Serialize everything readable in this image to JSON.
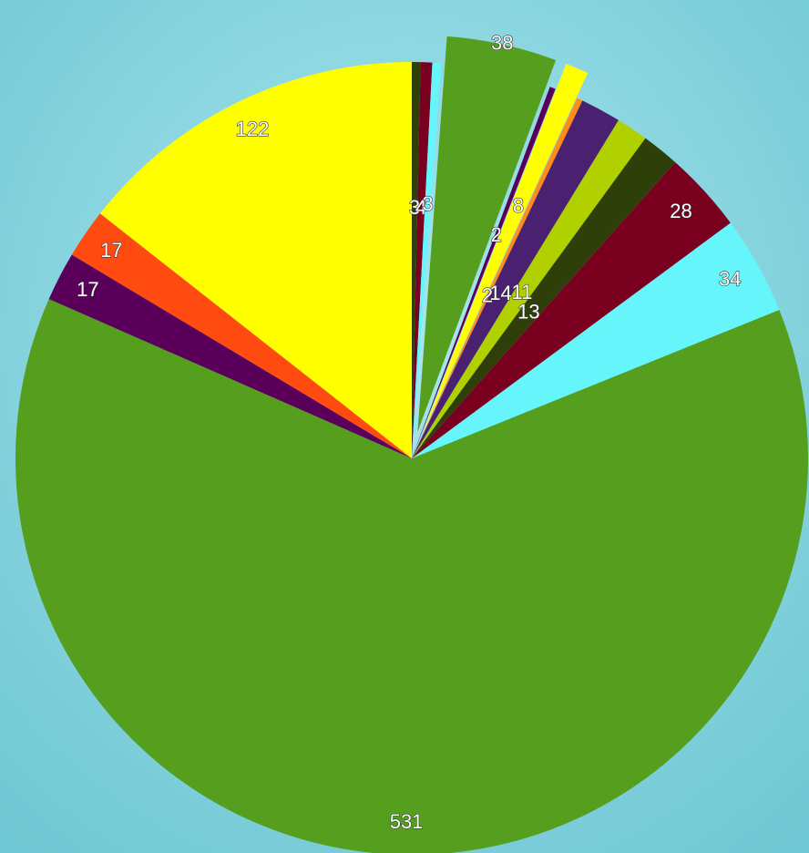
{
  "chart_data": {
    "type": "pie",
    "categories": [
      null,
      null,
      null,
      null,
      null,
      null,
      null,
      null,
      null,
      null,
      null,
      null,
      null,
      null,
      null,
      null
    ],
    "values": [
      3,
      4,
      3,
      38,
      2,
      8,
      2,
      14,
      11,
      13,
      28,
      34,
      531,
      17,
      17,
      122
    ],
    "colors": [
      "#2e3f0a",
      "#7a0020",
      "#66f5fa",
      "#559e1e",
      "#5a005a",
      "#ffff00",
      "#ff8c1a",
      "#4a2070",
      "#b0d000",
      "#2e3f0a",
      "#7a0020",
      "#66f5fa",
      "#559e1e",
      "#5a005a",
      "#ff4a10",
      "#ffff00"
    ]
  }
}
